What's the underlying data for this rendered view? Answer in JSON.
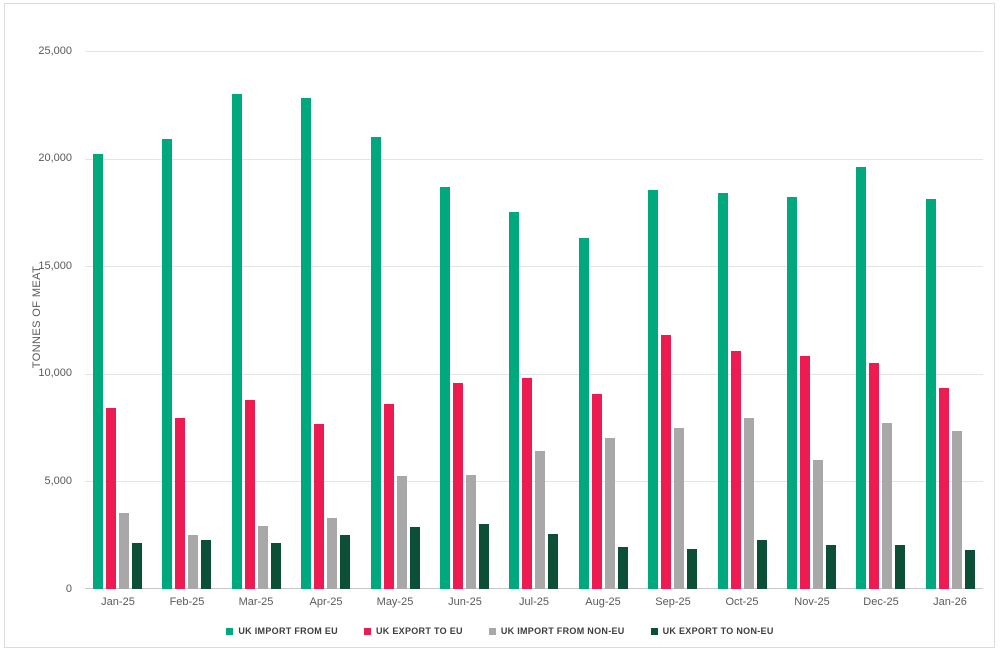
{
  "chart_data": {
    "type": "bar",
    "title": "",
    "ylabel": "TONNES OF MEAT",
    "xlabel": "",
    "ylim": [
      0,
      25000
    ],
    "ytick_interval": 5000,
    "ytick_labels": [
      "0",
      "5,000",
      "10,000",
      "15,000",
      "20,000",
      "25,000"
    ],
    "grid": true,
    "legend_position": "bottom",
    "categories": [
      "Jan-25",
      "Feb-25",
      "Mar-25",
      "Apr-25",
      "May-25",
      "Jun-25",
      "Jul-25",
      "Aug-25",
      "Sep-25",
      "Oct-25",
      "Nov-25",
      "Dec-25",
      "Jan-26"
    ],
    "series": [
      {
        "name": "UK IMPORT FROM EU",
        "key": "import-eu",
        "color": "#00a87e",
        "values": [
          20200,
          20900,
          23000,
          22800,
          21000,
          18700,
          17500,
          16300,
          18550,
          18400,
          18200,
          19600,
          18100
        ]
      },
      {
        "name": "UK EXPORT TO EU",
        "key": "export-eu",
        "color": "#ee1a52",
        "values": [
          8400,
          7950,
          8800,
          7650,
          8600,
          9550,
          9800,
          9050,
          11800,
          11050,
          10850,
          10500,
          9350
        ]
      },
      {
        "name": "UK IMPORT FROM NON-EU",
        "key": "import-non-eu",
        "color": "#a8a8a8",
        "values": [
          3550,
          2500,
          2950,
          3300,
          5250,
          5300,
          6400,
          7000,
          7500,
          7950,
          6000,
          7700,
          7350
        ]
      },
      {
        "name": "UK EXPORT TO NON-EU",
        "key": "export-non-eu",
        "color": "#0b4f37",
        "values": [
          2150,
          2300,
          2150,
          2500,
          2900,
          3000,
          2550,
          1950,
          1850,
          2300,
          2050,
          2050,
          1800
        ]
      }
    ]
  },
  "colors": {
    "gridline": "#e4e4e4",
    "axis_line": "#c9c9c9",
    "tick_text": "#595959",
    "legend_text": "#3d3d3d",
    "frame_border": "#dcdcdc",
    "background": "#ffffff"
  }
}
